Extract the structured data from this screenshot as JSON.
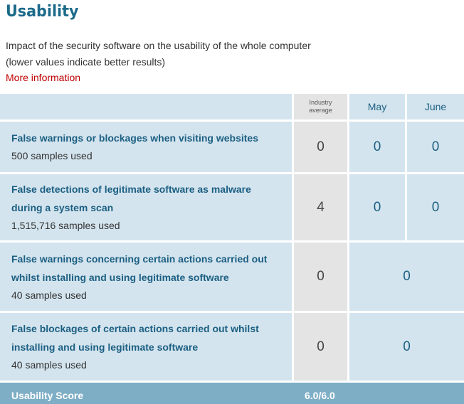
{
  "title": "Usability",
  "description": {
    "line1": "Impact of the security software on the usability of the whole computer",
    "line2": "(lower values indicate better results)"
  },
  "more_info_link": "More information",
  "columns": {
    "industry_average": "Industry average",
    "may": "May",
    "june": "June"
  },
  "rows": [
    {
      "title_lines": [
        "False warnings or blockages when visiting websites"
      ],
      "samples": "500 samples used",
      "industry_average": "0",
      "may": "0",
      "june": "0"
    },
    {
      "title_lines": [
        "False detections of legitimate software as malware",
        "during a system scan"
      ],
      "samples": "1,515,716 samples used",
      "industry_average": "4",
      "may": "0",
      "june": "0"
    },
    {
      "title_lines": [
        "False warnings concerning certain actions carried out",
        "whilst installing and using legitimate software"
      ],
      "samples": "40 samples used",
      "industry_average": "0",
      "combined": "0"
    },
    {
      "title_lines": [
        "False blockages of certain actions carried out whilst",
        "installing and using legitimate software"
      ],
      "samples": "40 samples used",
      "industry_average": "0",
      "combined": "0"
    }
  ],
  "footer": {
    "label": "Usability Score",
    "score": "6.0/6.0"
  },
  "colors": {
    "title": "#1c6a8a",
    "link": "#c00000",
    "cell_bg": "#d3e4ee",
    "industry_bg": "#e4e4e4",
    "footer_bg": "#7eaec6"
  }
}
